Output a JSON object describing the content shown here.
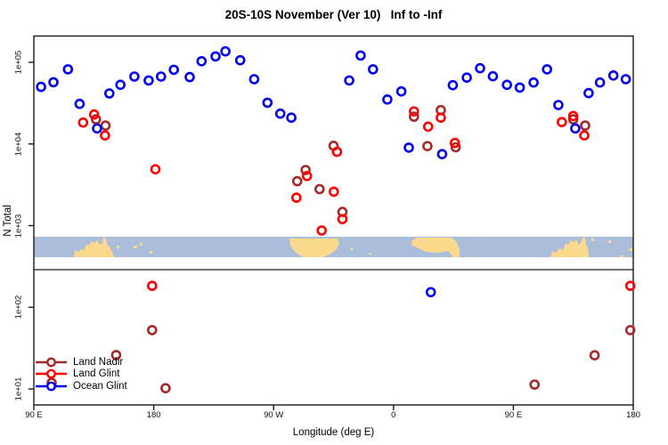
{
  "chart_data": {
    "type": "scatter",
    "title": "20S-10S November (Ver 10)   Inf to -Inf",
    "xlabel": "Longitude (deg E)",
    "ylabel": "N Total",
    "y_scale": "log10",
    "ylim": [
      6,
      300000
    ],
    "x_axis_span_deg": [
      90,
      540
    ],
    "grid": "off",
    "legend_position": "bottom-left",
    "x_ticks": [
      {
        "deg": 90,
        "label": "90 E"
      },
      {
        "deg": 180,
        "label": "180"
      },
      {
        "deg": 270,
        "label": "90 W"
      },
      {
        "deg": 360,
        "label": "0"
      },
      {
        "deg": 450,
        "label": "90 E"
      },
      {
        "deg": 540,
        "label": "180"
      }
    ],
    "y_ticks": [
      {
        "value": 100000,
        "label": "1e+05"
      },
      {
        "value": 10000,
        "label": "1e+04"
      },
      {
        "value": 1000,
        "label": "1e+03"
      },
      {
        "value": 100,
        "label": "1e+02"
      },
      {
        "value": 10,
        "label": "1e+01"
      }
    ],
    "series": [
      {
        "id": "land-nadir",
        "name": "Land Nadir",
        "color": "#A52A2A",
        "marker": "open-circle",
        "points": [
          {
            "deg": 136.7,
            "n": 20000
          },
          {
            "deg": 143.8,
            "n": 16800
          },
          {
            "deg": 287.7,
            "n": 3500
          },
          {
            "deg": 294.0,
            "n": 4800
          },
          {
            "deg": 304.5,
            "n": 2800
          },
          {
            "deg": 315.0,
            "n": 9500
          },
          {
            "deg": 321.7,
            "n": 1470
          },
          {
            "deg": 375.4,
            "n": 21600
          },
          {
            "deg": 385.5,
            "n": 9400
          },
          {
            "deg": 395.5,
            "n": 26000
          },
          {
            "deg": 406.7,
            "n": 9100
          },
          {
            "deg": 494.9,
            "n": 20000
          },
          {
            "deg": 503.9,
            "n": 16800
          },
          {
            "deg": 103.4,
            "n": 11.9
          },
          {
            "deg": 151.8,
            "n": 26
          },
          {
            "deg": 178.8,
            "n": 52.5
          },
          {
            "deg": 188.9,
            "n": 10.2
          },
          {
            "deg": 465.9,
            "n": 11.3
          },
          {
            "deg": 511.0,
            "n": 25.8
          },
          {
            "deg": 537.8,
            "n": 52.5
          }
        ]
      },
      {
        "id": "land-glint",
        "name": "Land Glint",
        "color": "#FF0000",
        "marker": "open-circle",
        "points": [
          {
            "deg": 127.0,
            "n": 18300
          },
          {
            "deg": 135.3,
            "n": 23000
          },
          {
            "deg": 143.4,
            "n": 12700
          },
          {
            "deg": 181.3,
            "n": 4900
          },
          {
            "deg": 287.1,
            "n": 2200
          },
          {
            "deg": 295.1,
            "n": 4050
          },
          {
            "deg": 306.1,
            "n": 870
          },
          {
            "deg": 315.2,
            "n": 2600
          },
          {
            "deg": 317.6,
            "n": 8000
          },
          {
            "deg": 321.7,
            "n": 1200
          },
          {
            "deg": 375.4,
            "n": 25000
          },
          {
            "deg": 386.0,
            "n": 16300
          },
          {
            "deg": 395.5,
            "n": 21000
          },
          {
            "deg": 406.1,
            "n": 10300
          },
          {
            "deg": 486.4,
            "n": 18500
          },
          {
            "deg": 494.9,
            "n": 22000
          },
          {
            "deg": 503.2,
            "n": 12700
          },
          {
            "deg": 178.8,
            "n": 183
          },
          {
            "deg": 537.8,
            "n": 183
          }
        ]
      },
      {
        "id": "ocean-glint",
        "name": "Ocean Glint",
        "color": "#0000EE",
        "marker": "open-circle",
        "points": [
          {
            "deg": 95.4,
            "n": 50000
          },
          {
            "deg": 104.7,
            "n": 57000
          },
          {
            "deg": 115.6,
            "n": 82000
          },
          {
            "deg": 124.4,
            "n": 31000
          },
          {
            "deg": 137.5,
            "n": 15500
          },
          {
            "deg": 146.7,
            "n": 41500
          },
          {
            "deg": 155.0,
            "n": 53000
          },
          {
            "deg": 165.5,
            "n": 67000
          },
          {
            "deg": 176.2,
            "n": 60000
          },
          {
            "deg": 185.5,
            "n": 67000
          },
          {
            "deg": 195.1,
            "n": 81000
          },
          {
            "deg": 207.0,
            "n": 66000
          },
          {
            "deg": 215.9,
            "n": 103000
          },
          {
            "deg": 226.4,
            "n": 118000
          },
          {
            "deg": 233.8,
            "n": 136000
          },
          {
            "deg": 244.9,
            "n": 106000
          },
          {
            "deg": 255.4,
            "n": 62000
          },
          {
            "deg": 265.4,
            "n": 32000
          },
          {
            "deg": 275.0,
            "n": 23500
          },
          {
            "deg": 283.3,
            "n": 21000
          },
          {
            "deg": 326.8,
            "n": 60000
          },
          {
            "deg": 335.3,
            "n": 121000
          },
          {
            "deg": 344.6,
            "n": 82000
          },
          {
            "deg": 355.4,
            "n": 35000
          },
          {
            "deg": 365.9,
            "n": 44000
          },
          {
            "deg": 371.5,
            "n": 9000
          },
          {
            "deg": 388.0,
            "n": 153
          },
          {
            "deg": 396.5,
            "n": 7500
          },
          {
            "deg": 404.5,
            "n": 52500
          },
          {
            "deg": 415.0,
            "n": 65000
          },
          {
            "deg": 425.0,
            "n": 84500
          },
          {
            "deg": 434.6,
            "n": 67500
          },
          {
            "deg": 445.2,
            "n": 53000
          },
          {
            "deg": 454.8,
            "n": 49000
          },
          {
            "deg": 465.2,
            "n": 56600
          },
          {
            "deg": 475.3,
            "n": 82000
          },
          {
            "deg": 483.8,
            "n": 30000
          },
          {
            "deg": 496.5,
            "n": 15500
          },
          {
            "deg": 506.5,
            "n": 42000
          },
          {
            "deg": 515.0,
            "n": 56600
          },
          {
            "deg": 525.1,
            "n": 69000
          },
          {
            "deg": 534.4,
            "n": 62000
          }
        ]
      }
    ],
    "map_strip": {
      "description": "continent band for 20S-10S latitudes",
      "ocean_color": "#AABDDB",
      "land_color": "#FBD98C",
      "y_top": 266,
      "y_bottom": 289,
      "land_polygons": [
        [
          [
            83,
            289
          ],
          [
            84,
            281
          ],
          [
            88,
            283
          ],
          [
            92,
            279
          ],
          [
            95,
            281
          ],
          [
            97,
            274
          ],
          [
            100,
            276
          ],
          [
            103,
            271
          ],
          [
            106,
            273
          ],
          [
            109,
            270
          ],
          [
            112,
            275
          ],
          [
            115,
            273
          ],
          [
            116,
            267
          ],
          [
            119,
            267
          ],
          [
            120,
            274
          ],
          [
            123,
            278
          ],
          [
            126,
            283
          ],
          [
            128,
            289
          ]
        ],
        [
          [
            325,
            268
          ],
          [
            379,
            268
          ],
          [
            381,
            274
          ],
          [
            377,
            281
          ],
          [
            370,
            286
          ],
          [
            362,
            289
          ],
          [
            340,
            289
          ],
          [
            331,
            283
          ],
          [
            326,
            276
          ]
        ],
        [
          [
            462,
            271
          ],
          [
            468,
            267
          ],
          [
            506,
            267
          ],
          [
            512,
            271
          ],
          [
            516,
            280
          ],
          [
            516,
            289
          ],
          [
            509,
            289
          ],
          [
            503,
            282
          ],
          [
            492,
            284
          ],
          [
            478,
            283
          ],
          [
            468,
            278
          ],
          [
            463,
            276
          ]
        ],
        [
          [
            618,
            289
          ],
          [
            620,
            282
          ],
          [
            624,
            284
          ],
          [
            628,
            279
          ],
          [
            632,
            281
          ],
          [
            635,
            273
          ],
          [
            638,
            275
          ],
          [
            641,
            270
          ],
          [
            644,
            272
          ],
          [
            647,
            269
          ],
          [
            650,
            275
          ],
          [
            652,
            273
          ],
          [
            654,
            267
          ],
          [
            657,
            267
          ],
          [
            658,
            274
          ],
          [
            660,
            279
          ],
          [
            661,
            289
          ]
        ]
      ],
      "land_specks": [
        [
          131,
          276,
          3,
          3
        ],
        [
          150,
          276,
          4,
          3
        ],
        [
          157,
          273,
          3,
          3
        ],
        [
          168,
          282,
          3,
          3
        ],
        [
          393,
          279,
          3,
          2
        ],
        [
          414,
          284,
          3,
          2
        ],
        [
          664,
          268,
          3,
          3
        ],
        [
          683,
          270,
          3,
          3
        ],
        [
          696,
          287,
          4,
          2
        ],
        [
          706,
          279,
          4,
          3
        ]
      ]
    }
  }
}
